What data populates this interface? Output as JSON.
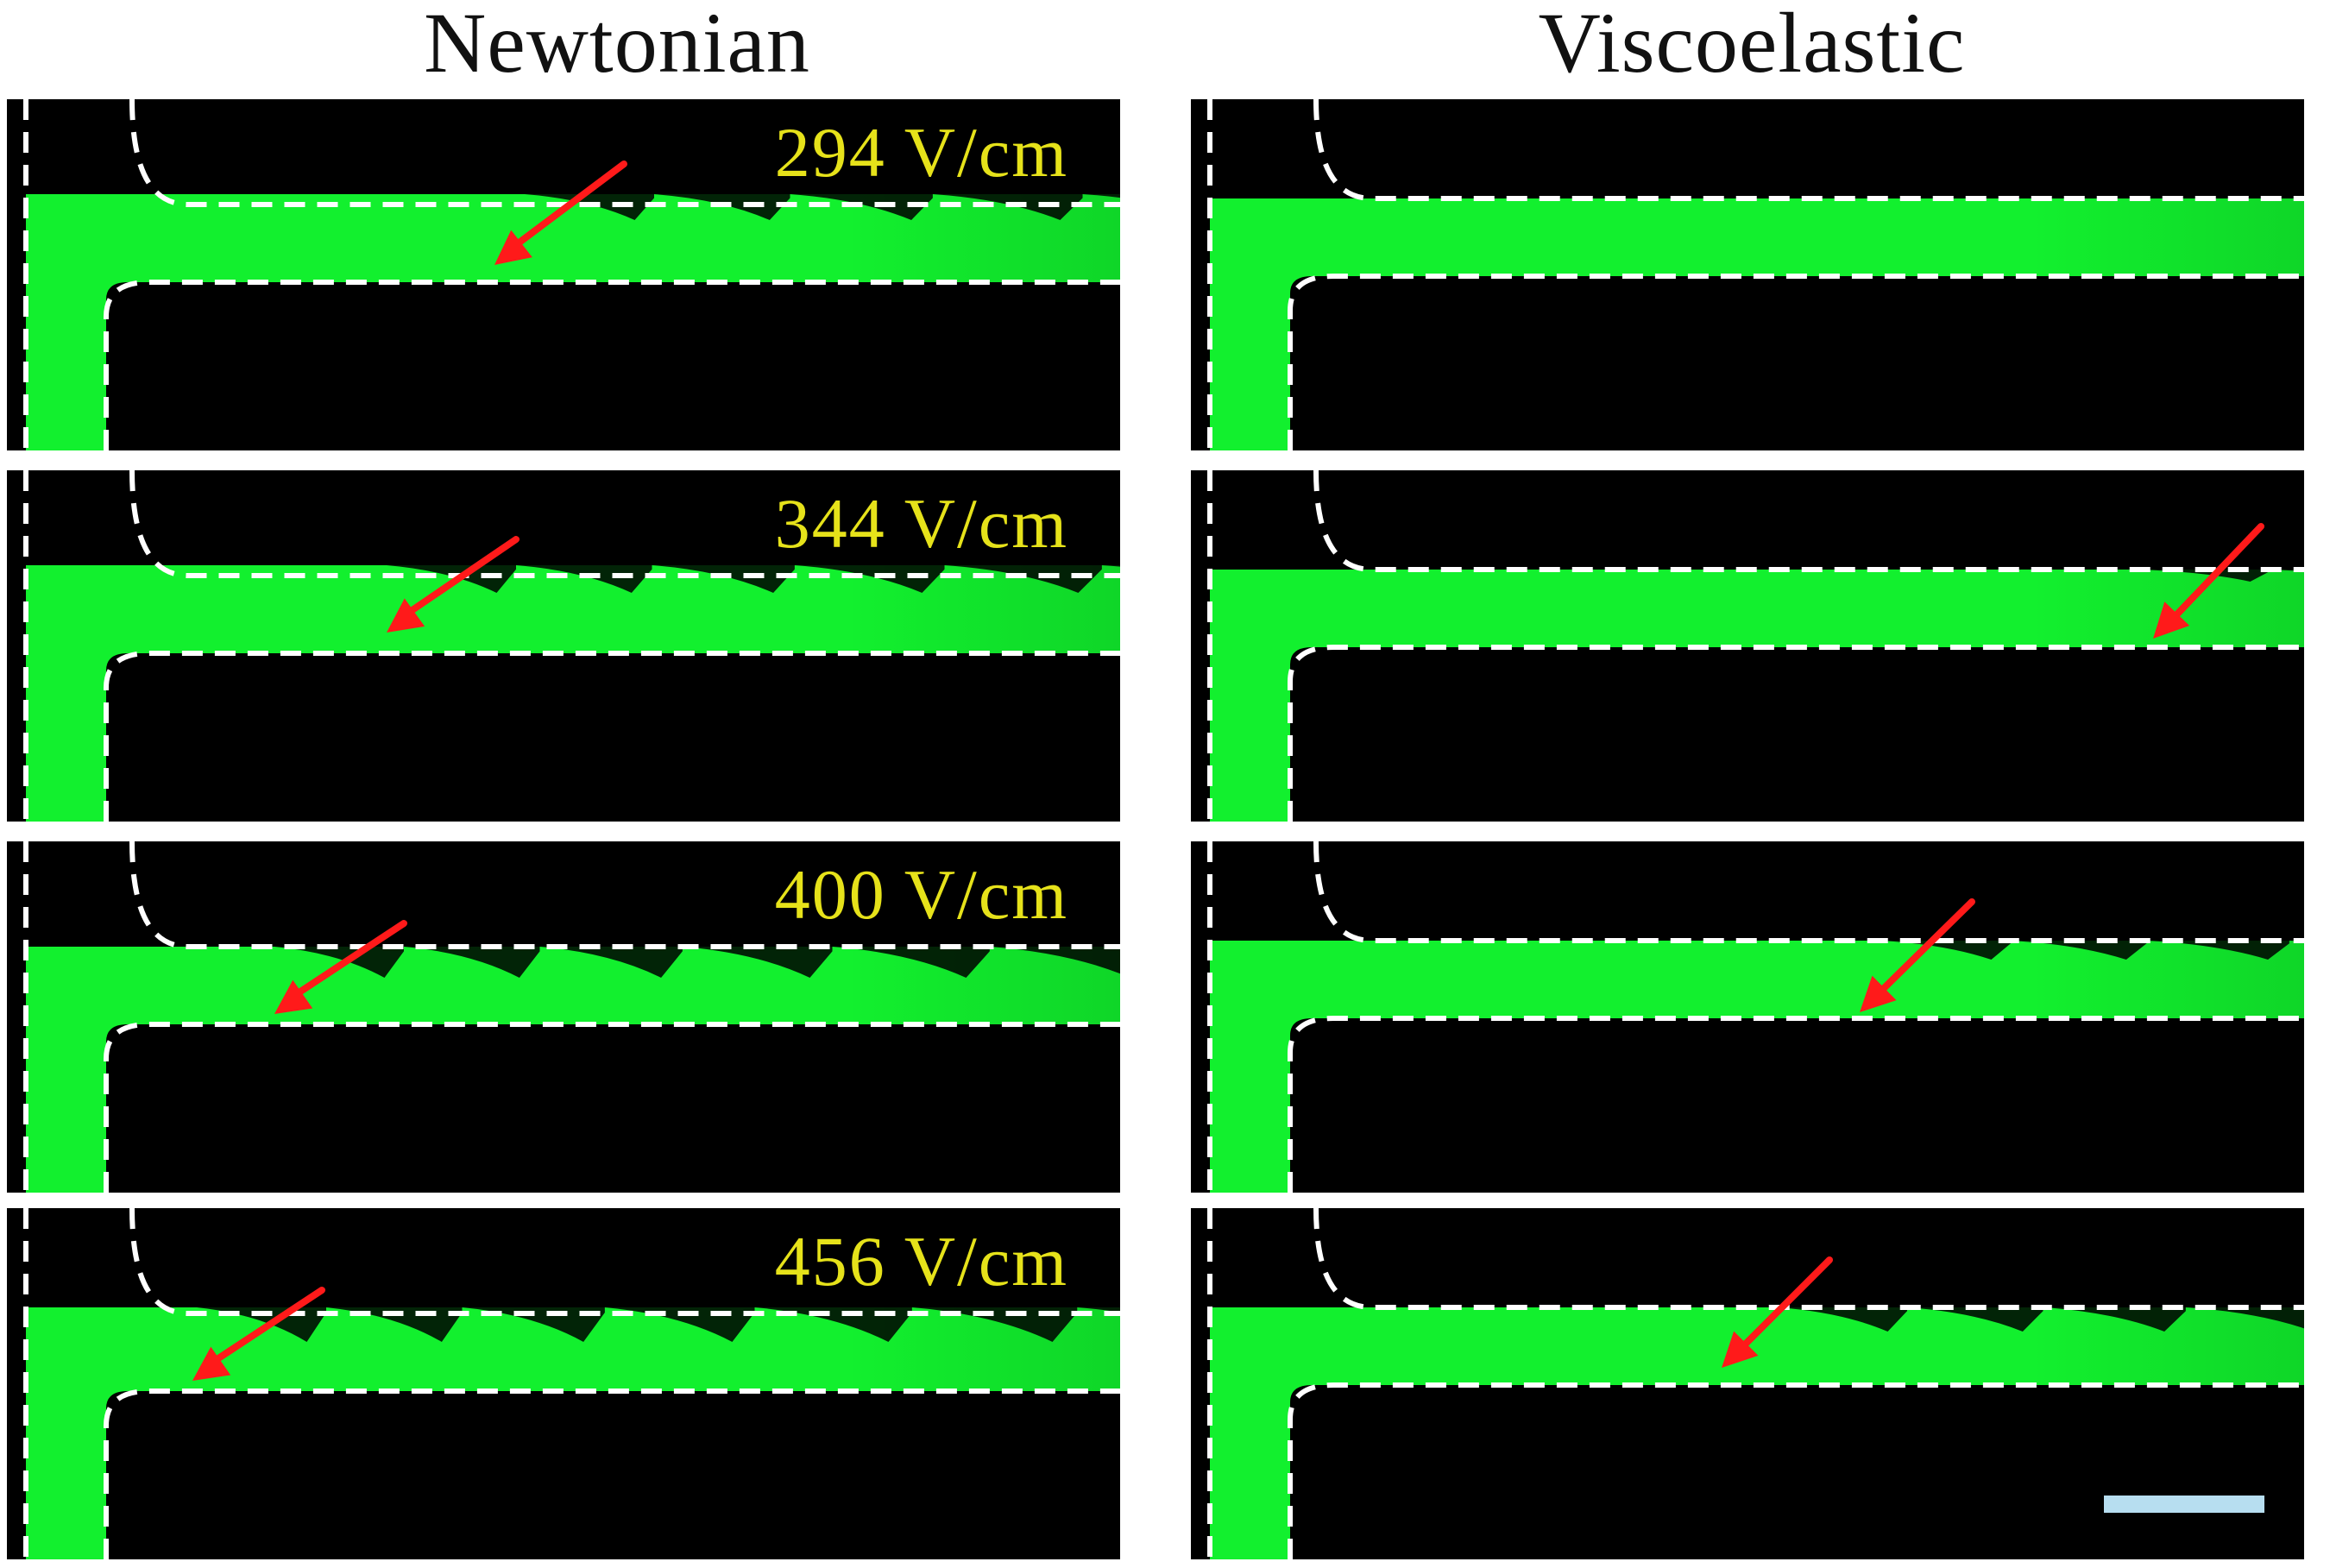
{
  "columns": [
    {
      "title": "Newtonian"
    },
    {
      "title": "Viscoelastic"
    }
  ],
  "field_strengths": [
    "294 V/cm",
    "344 V/cm",
    "400 V/cm",
    "456 V/cm"
  ],
  "colors": {
    "background": "#ffffff",
    "panel": "#000000",
    "fluorescence": "#12f02e",
    "wall_outline": "#ffffff",
    "arrow": "#ff1a1a",
    "label_text": "#e6e21a",
    "scale_bar": "#b7def0"
  },
  "icons": {
    "arrow": "red-arrow-icon",
    "wall": "dashed-wall-outline"
  }
}
